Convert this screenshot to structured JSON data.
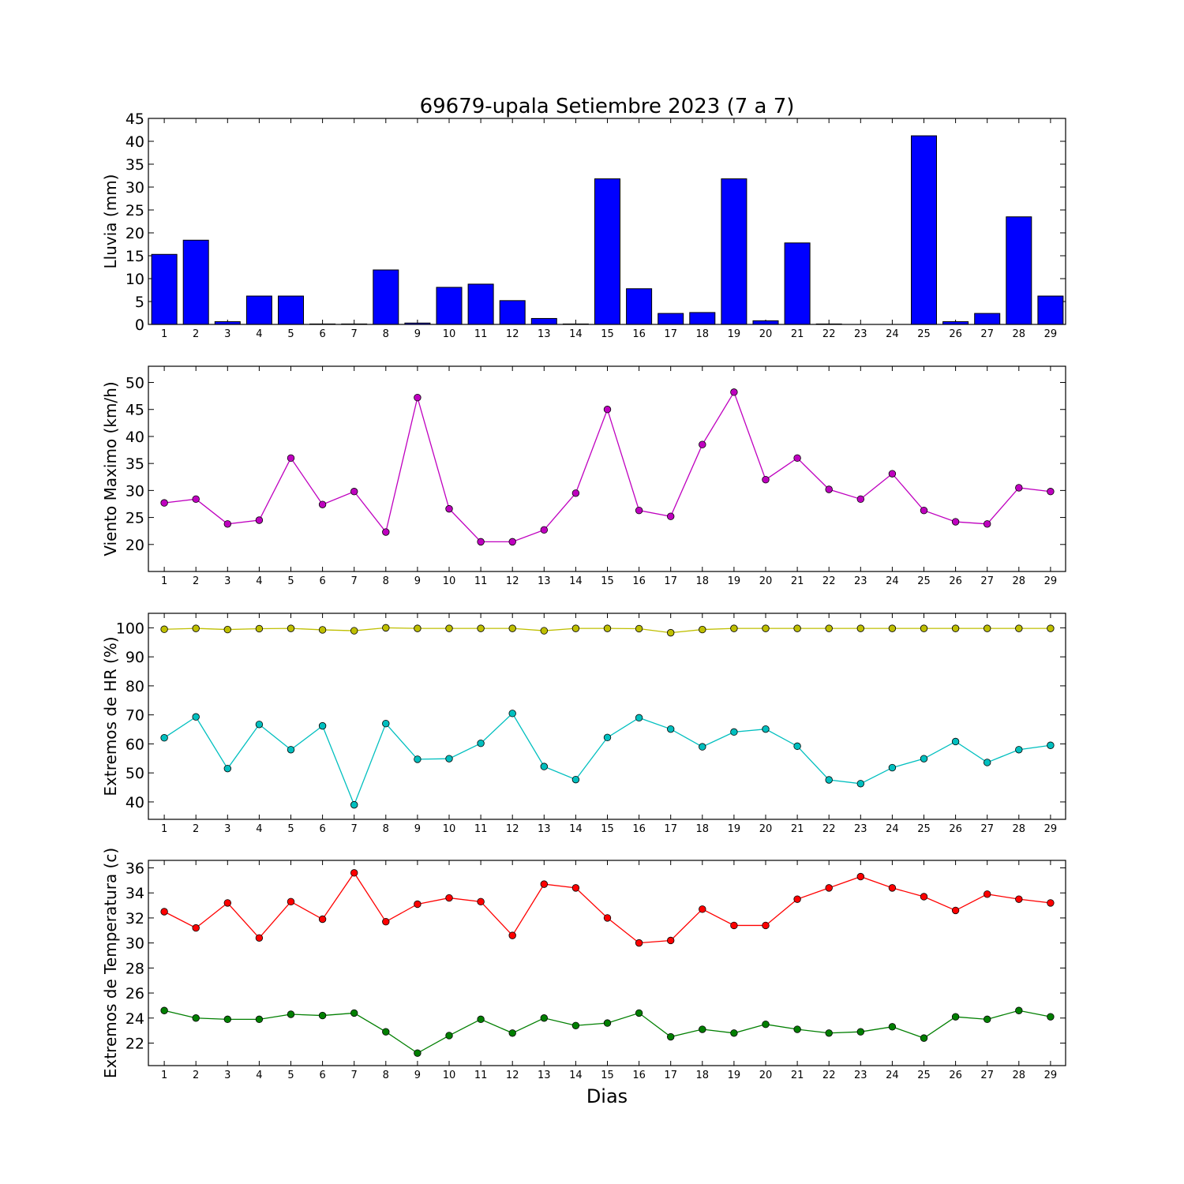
{
  "figure": {
    "title": "69679-upala Setiembre 2023  (7 a 7)",
    "xlabel": "Dias"
  },
  "chart_data": [
    {
      "type": "bar",
      "ylabel": "Lluvia (mm)",
      "ylim": [
        0,
        45
      ],
      "yticks": [
        0,
        5,
        10,
        15,
        20,
        25,
        30,
        35,
        40,
        45
      ],
      "x": [
        1,
        2,
        3,
        4,
        5,
        6,
        7,
        8,
        9,
        10,
        11,
        12,
        13,
        14,
        15,
        16,
        17,
        18,
        19,
        20,
        21,
        22,
        23,
        24,
        25,
        26,
        27,
        28,
        29
      ],
      "series": [
        {
          "color": "#0000ff",
          "values": [
            15.3,
            18.4,
            0.6,
            6.2,
            6.2,
            0.1,
            0.1,
            11.9,
            0.3,
            8.1,
            8.8,
            5.2,
            1.3,
            0.1,
            31.8,
            7.8,
            2.4,
            2.6,
            31.8,
            0.8,
            17.8,
            0.1,
            0,
            0,
            41.2,
            0.6,
            2.4,
            23.5,
            6.2
          ]
        }
      ]
    },
    {
      "type": "line",
      "ylabel": "Viento Maximo (km/h)",
      "ylim": [
        15,
        53
      ],
      "yticks": [
        20,
        25,
        30,
        35,
        40,
        45,
        50
      ],
      "x": [
        1,
        2,
        3,
        4,
        5,
        6,
        7,
        8,
        9,
        10,
        11,
        12,
        13,
        14,
        15,
        16,
        17,
        18,
        19,
        20,
        21,
        22,
        23,
        24,
        25,
        26,
        27,
        28,
        29
      ],
      "series": [
        {
          "color": "#bf00bf",
          "values": [
            27.7,
            28.4,
            23.8,
            24.5,
            36.0,
            27.4,
            29.8,
            22.3,
            47.2,
            26.6,
            20.5,
            20.5,
            22.7,
            29.5,
            45.0,
            26.3,
            25.2,
            38.5,
            48.2,
            32.0,
            36.0,
            30.2,
            28.4,
            33.1,
            26.3,
            24.2,
            23.8,
            30.5,
            29.8
          ]
        }
      ]
    },
    {
      "type": "line",
      "ylabel": "Extremos de HR (%)",
      "ylim": [
        34,
        105
      ],
      "yticks": [
        40,
        50,
        60,
        70,
        80,
        90,
        100
      ],
      "x": [
        1,
        2,
        3,
        4,
        5,
        6,
        7,
        8,
        9,
        10,
        11,
        12,
        13,
        14,
        15,
        16,
        17,
        18,
        19,
        20,
        21,
        22,
        23,
        24,
        25,
        26,
        27,
        28,
        29
      ],
      "series": [
        {
          "color": "#bfbf00",
          "values": [
            99.5,
            99.8,
            99.4,
            99.7,
            99.8,
            99.3,
            99.0,
            100.0,
            99.8,
            99.8,
            99.8,
            99.8,
            99.0,
            99.8,
            99.8,
            99.7,
            98.3,
            99.4,
            99.8,
            99.8,
            99.8,
            99.8,
            99.8,
            99.8,
            99.8,
            99.8,
            99.8,
            99.8,
            99.8
          ]
        },
        {
          "color": "#00bfbf",
          "values": [
            62.1,
            69.3,
            51.5,
            66.7,
            58.0,
            66.2,
            39.0,
            67.0,
            54.7,
            54.9,
            60.2,
            70.5,
            52.2,
            47.7,
            62.2,
            69.0,
            65.1,
            59.0,
            64.1,
            65.1,
            59.2,
            47.6,
            46.3,
            51.8,
            54.9,
            60.8,
            53.6,
            58.0,
            59.5
          ]
        }
      ]
    },
    {
      "type": "line",
      "ylabel": "Extremos de Temperatura (c)",
      "ylim": [
        20.2,
        36.6
      ],
      "yticks": [
        22,
        24,
        26,
        28,
        30,
        32,
        34,
        36
      ],
      "x": [
        1,
        2,
        3,
        4,
        5,
        6,
        7,
        8,
        9,
        10,
        11,
        12,
        13,
        14,
        15,
        16,
        17,
        18,
        19,
        20,
        21,
        22,
        23,
        24,
        25,
        26,
        27,
        28,
        29
      ],
      "series": [
        {
          "color": "#ff0000",
          "values": [
            32.5,
            31.2,
            33.2,
            30.4,
            33.3,
            31.9,
            35.6,
            31.7,
            33.1,
            33.6,
            33.3,
            30.6,
            34.7,
            34.4,
            32.0,
            30.0,
            30.2,
            32.7,
            31.4,
            31.4,
            33.5,
            34.4,
            35.3,
            34.4,
            33.7,
            32.6,
            33.9,
            33.5,
            33.2
          ]
        },
        {
          "color": "#007f00",
          "values": [
            24.6,
            24.0,
            23.9,
            23.9,
            24.3,
            24.2,
            24.4,
            22.9,
            21.2,
            22.6,
            23.9,
            22.8,
            24.0,
            23.4,
            23.6,
            24.4,
            22.5,
            23.1,
            22.8,
            23.5,
            23.1,
            22.8,
            22.9,
            23.3,
            22.4,
            24.1,
            23.9,
            24.6,
            24.1
          ]
        }
      ]
    }
  ]
}
